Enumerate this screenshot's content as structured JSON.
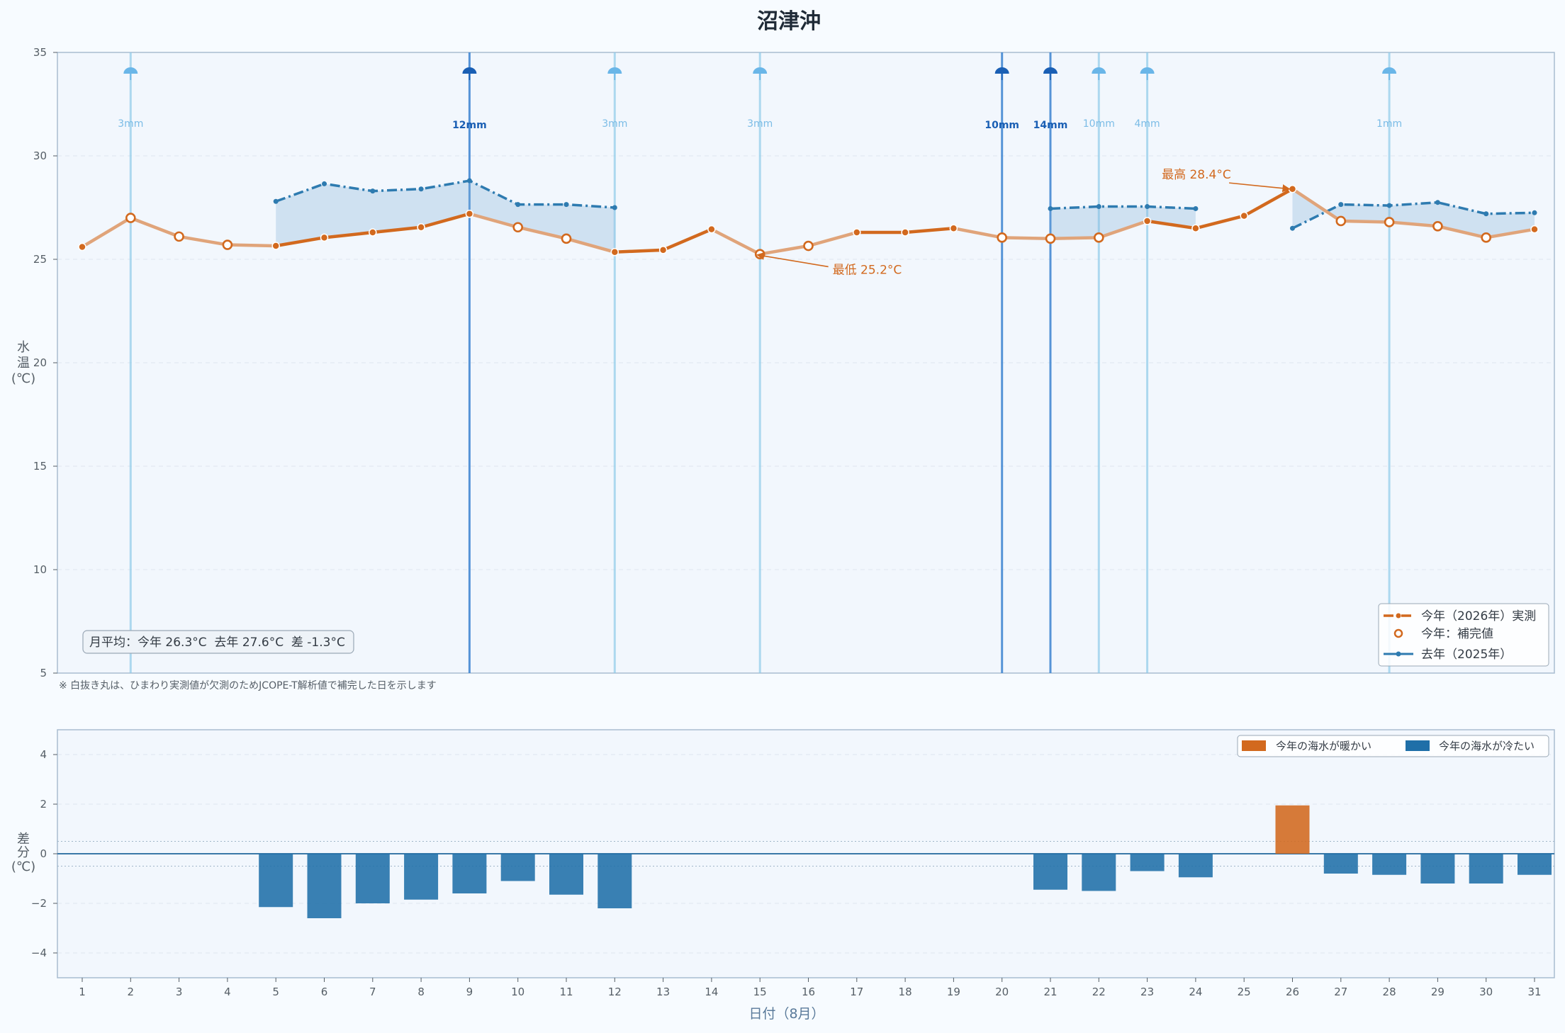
{
  "chart_data": [
    {
      "type": "line",
      "title": "沼津沖",
      "ylabel": "水温(℃)",
      "ylim": [
        5,
        35
      ],
      "yticks": [
        5,
        10,
        15,
        20,
        25,
        30,
        35
      ],
      "x": [
        1,
        2,
        3,
        4,
        5,
        6,
        7,
        8,
        9,
        10,
        11,
        12,
        13,
        14,
        15,
        16,
        17,
        18,
        19,
        20,
        21,
        22,
        23,
        24,
        25,
        26,
        27,
        28,
        29,
        30,
        31
      ],
      "series": [
        {
          "name": "今年（2026年）実測",
          "color": "#d2691e",
          "values": [
            25.6,
            27.0,
            26.1,
            25.7,
            25.65,
            26.05,
            26.3,
            26.55,
            27.2,
            26.55,
            26.0,
            25.35,
            25.45,
            26.45,
            25.25,
            25.65,
            26.3,
            26.3,
            26.5,
            26.05,
            26.0,
            26.05,
            26.85,
            26.5,
            27.1,
            28.4,
            26.85,
            26.8,
            26.6,
            26.05,
            26.45
          ],
          "imputed_days": [
            2,
            3,
            4,
            10,
            11,
            15,
            16,
            20,
            21,
            22,
            27,
            28,
            29,
            30
          ]
        },
        {
          "name": "去年（2025年）",
          "color": "#2e7bb0",
          "values": [
            null,
            null,
            null,
            null,
            27.8,
            28.65,
            28.3,
            28.4,
            28.8,
            27.65,
            27.65,
            27.5,
            null,
            null,
            null,
            null,
            null,
            null,
            null,
            null,
            27.45,
            27.55,
            27.55,
            27.45,
            null,
            26.5,
            27.65,
            27.6,
            27.75,
            27.2,
            27.25
          ]
        }
      ],
      "legend_entries": [
        "今年（2026年）実測",
        "今年：補完値",
        "去年（2025年）"
      ],
      "legend_position": "bottom-right",
      "rain": [
        {
          "day": 2,
          "label": "3mm",
          "heavy": false
        },
        {
          "day": 9,
          "label": "12mm",
          "heavy": true
        },
        {
          "day": 12,
          "label": "3mm",
          "heavy": false
        },
        {
          "day": 15,
          "label": "3mm",
          "heavy": false
        },
        {
          "day": 20,
          "label": "10mm",
          "heavy": true
        },
        {
          "day": 21,
          "label": "14mm",
          "heavy": true
        },
        {
          "day": 22,
          "label": "10mm",
          "heavy": false
        },
        {
          "day": 23,
          "label": "4mm",
          "heavy": false
        },
        {
          "day": 28,
          "label": "1mm",
          "heavy": false
        }
      ],
      "annotations": [
        {
          "text": "最高 28.4°C",
          "day": 26,
          "value": 28.4,
          "text_day": 23.3,
          "text_value": 28.9
        },
        {
          "text": "最低 25.2°C",
          "day": 15,
          "value": 25.25,
          "text_day": 16.5,
          "text_value": 24.3
        }
      ],
      "summary_box": "月平均：今年 26.3°C  去年 27.6°C  差 -1.3°C",
      "grid": true
    },
    {
      "type": "bar",
      "ylabel": "差分(℃)",
      "xlabel": "日付（8月）",
      "ylim": [
        -5,
        5
      ],
      "yticks": [
        -4,
        -2,
        0,
        2,
        4
      ],
      "ytick_labels": [
        "−4",
        "−2",
        "0",
        "2",
        "4"
      ],
      "x": [
        1,
        2,
        3,
        4,
        5,
        6,
        7,
        8,
        9,
        10,
        11,
        12,
        13,
        14,
        15,
        16,
        17,
        18,
        19,
        20,
        21,
        22,
        23,
        24,
        25,
        26,
        27,
        28,
        29,
        30,
        31
      ],
      "values": [
        null,
        null,
        null,
        null,
        -2.15,
        -2.6,
        -2.0,
        -1.85,
        -1.6,
        -1.1,
        -1.65,
        -2.2,
        null,
        null,
        null,
        null,
        null,
        null,
        null,
        null,
        -1.45,
        -1.5,
        -0.7,
        -0.95,
        null,
        1.95,
        -0.8,
        -0.85,
        -1.2,
        -1.2,
        -0.85
      ],
      "reference_band": [
        -0.5,
        0.5
      ],
      "legend_entries": [
        {
          "label": "今年の海水が暖かい",
          "color": "#d2691e"
        },
        {
          "label": "今年の海水が冷たい",
          "color": "#1f6fa8"
        }
      ],
      "legend_position": "top-right",
      "grid": true
    }
  ],
  "footnote": "※ 白抜き丸は、ひまわり実測値が欠測のためJCOPE-T解析値で補完した日を示します"
}
